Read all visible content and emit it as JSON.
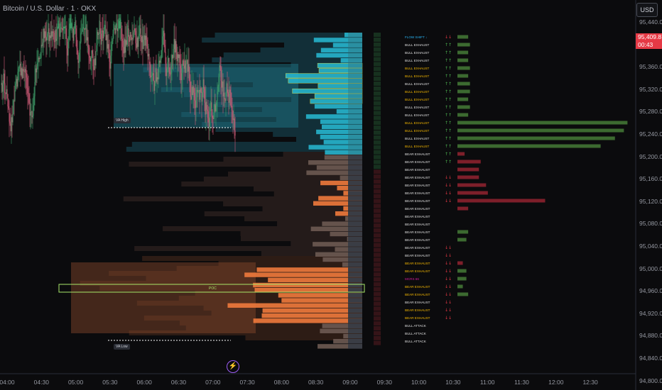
{
  "header": {
    "title": "Bitcoin / U.S. Dollar · 1 · OKX",
    "currency_button": "USD"
  },
  "current_price": {
    "price": "95,409.8",
    "countdown": "00:43"
  },
  "y_axis": {
    "labels": [
      "95,440.0",
      "95,400.0",
      "95,360.0",
      "95,320.0",
      "95,280.0",
      "95,240.0",
      "95,200.0",
      "95,160.0",
      "95,120.0",
      "95,080.0",
      "95,040.0",
      "95,000.0",
      "94,960.0",
      "94,920.0",
      "94,880.0",
      "94,840.0",
      "94,800.0"
    ]
  },
  "x_axis": {
    "labels": [
      "04:00",
      "04:30",
      "05:00",
      "05:30",
      "06:00",
      "06:30",
      "07:00",
      "07:30",
      "08:00",
      "08:30",
      "09:00",
      "09:30",
      "10:00",
      "10:30",
      "11:00",
      "11:30",
      "12:00",
      "12:30"
    ]
  },
  "annotations": {
    "va_high": "VA High",
    "va_low": "VA Low",
    "poc": "POC"
  },
  "signals": [
    {
      "text": "FLOW SHIFT ↓",
      "color": "#29b6f6",
      "arrow": "↓↓",
      "bar": 0.06
    },
    {
      "text": "BULL EXHAUST",
      "color": "#e0e0e0",
      "arrow": "↑↑",
      "bar": 0.07
    },
    {
      "text": "BULL EXHAUST",
      "color": "#e0e0e0",
      "arrow": "↑↑",
      "bar": 0.06
    },
    {
      "text": "BULL EXHAUST",
      "color": "#e0e0e0",
      "arrow": "↑↑",
      "bar": 0.06
    },
    {
      "text": "BULL EXHAUST",
      "color": "#f5b800",
      "arrow": "↑↑",
      "bar": 0.07
    },
    {
      "text": "BULL EXHAUST",
      "color": "#f5b800",
      "arrow": "↑↑",
      "bar": 0.06
    },
    {
      "text": "BULL EXHAUST",
      "color": "#e0e0e0",
      "arrow": "↑↑",
      "bar": 0.07
    },
    {
      "text": "BULL EXHAUST",
      "color": "#f5b800",
      "arrow": "↑↑",
      "bar": 0.07
    },
    {
      "text": "BULL EXHAUST",
      "color": "#f5b800",
      "arrow": "↑↑",
      "bar": 0.06
    },
    {
      "text": "BULL EXHAUST",
      "color": "#e0e0e0",
      "arrow": "↑↑",
      "bar": 0.07
    },
    {
      "text": "BULL EXHAUST",
      "color": "#e0e0e0",
      "arrow": "↑↑",
      "bar": 0.06
    },
    {
      "text": "BULL EXHAUST",
      "color": "#f5b800",
      "arrow": "↑↑",
      "bar": 0.95
    },
    {
      "text": "BULL EXHAUST",
      "color": "#f5b800",
      "arrow": "↑↑",
      "bar": 0.93
    },
    {
      "text": "BULL EXHAUST",
      "color": "#e0e0e0",
      "arrow": "↑↑",
      "bar": 0.88
    },
    {
      "text": "BULL EXHAUST",
      "color": "#f5b800",
      "arrow": "↑↑",
      "bar": 0.8
    },
    {
      "text": "BEAR EXHAUST",
      "color": "#e0e0e0",
      "arrow": "↑↑",
      "bar": -0.04
    },
    {
      "text": "BEAR EXHAUST",
      "color": "#e0e0e0",
      "arrow": "↑↑",
      "bar": -0.13
    },
    {
      "text": "BEAR EXHAUST",
      "color": "#e0e0e0",
      "arrow": "",
      "bar": -0.12
    },
    {
      "text": "BEAR EXHAUST",
      "color": "#e0e0e0",
      "arrow": "↓↓",
      "bar": -0.12
    },
    {
      "text": "BEAR EXHAUST",
      "color": "#e0e0e0",
      "arrow": "↓↓",
      "bar": -0.16
    },
    {
      "text": "BEAR EXHAUST",
      "color": "#e0e0e0",
      "arrow": "↓↓",
      "bar": -0.17
    },
    {
      "text": "BEAR EXHAUST",
      "color": "#e0e0e0",
      "arrow": "↓↓",
      "bar": -0.49
    },
    {
      "text": "BEAR EXHAUST",
      "color": "#e0e0e0",
      "arrow": "",
      "bar": -0.06
    },
    {
      "text": "BEAR EXHAUST",
      "color": "#e0e0e0",
      "arrow": "",
      "bar": 0
    },
    {
      "text": "BEAR EXHAUST",
      "color": "#e0e0e0",
      "arrow": "",
      "bar": 0
    },
    {
      "text": "BEAR EXHAUST",
      "color": "#e0e0e0",
      "arrow": "",
      "bar": 0.06
    },
    {
      "text": "BEAR EXHAUST",
      "color": "#e0e0e0",
      "arrow": "",
      "bar": 0.05
    },
    {
      "text": "BEAR EXHAUST",
      "color": "#e0e0e0",
      "arrow": "↓↓",
      "bar": 0
    },
    {
      "text": "BEAR EXHAUST",
      "color": "#e0e0e0",
      "arrow": "↓↓",
      "bar": 0
    },
    {
      "text": "BEAR EXHAUST",
      "color": "#f5b800",
      "arrow": "↓↓",
      "bar": -0.03
    },
    {
      "text": "BEAR EXHAUST",
      "color": "#f5b800",
      "arrow": "↓↓",
      "bar": 0.05
    },
    {
      "text": "MCRS 66",
      "color": "#d81b9c",
      "arrow": "↓↓",
      "bar": 0.05
    },
    {
      "text": "BEAR EXHAUST",
      "color": "#f5b800",
      "arrow": "↓↓",
      "bar": 0.03
    },
    {
      "text": "BEAR EXHAUST",
      "color": "#f5b800",
      "arrow": "↓↓",
      "bar": 0.06
    },
    {
      "text": "BEAR EXHAUST",
      "color": "#e0e0e0",
      "arrow": "↓↓",
      "bar": 0
    },
    {
      "text": "BEAR EXHAUST",
      "color": "#f5b800",
      "arrow": "↓↓",
      "bar": 0
    },
    {
      "text": "BEAR EXHAUST",
      "color": "#f5b800",
      "arrow": "↓↓",
      "bar": 0
    },
    {
      "text": "BULL ATTACK",
      "color": "#e0e0e0",
      "arrow": "",
      "bar": 0
    },
    {
      "text": "BULL ATTACK",
      "color": "#e0e0e0",
      "arrow": "",
      "bar": 0
    },
    {
      "text": "BULL ATTACK",
      "color": "#e0e0e0",
      "arrow": "",
      "bar": 0
    }
  ],
  "colors": {
    "background": "#0b0b0d",
    "candle_up": "#3fa06a",
    "candle_down": "#d45d7a",
    "bull_profile": "#27b4cc",
    "bear_profile": "#f07a3c",
    "poc_line": "#a8e86a",
    "price_tag": "#e53945",
    "bull_bar": "#3c6a30",
    "bear_bar": "#7e1f2a"
  }
}
